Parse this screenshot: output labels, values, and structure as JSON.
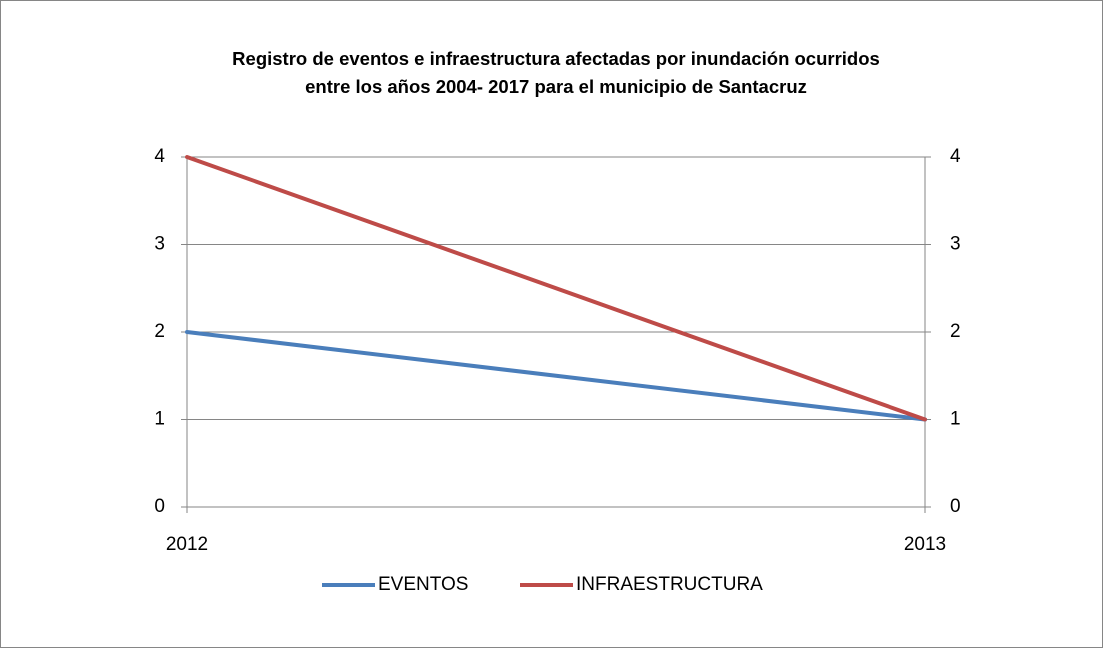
{
  "chart_data": {
    "type": "line",
    "title": [
      "Registro de eventos e infraestructura afectadas por inundación ocurridos",
      "entre los años 2004- 2017 para el municipio de Santacruz"
    ],
    "categories": [
      "2012",
      "2013"
    ],
    "series": [
      {
        "name": "EVENTOS",
        "color": "#4a7ebb",
        "values": [
          2,
          1
        ]
      },
      {
        "name": "INFRAESTRUCTURA",
        "color": "#be4b48",
        "values": [
          4,
          1
        ],
        "axis": "y2"
      }
    ],
    "ylim": [
      0,
      4
    ],
    "yticks": [
      0,
      1,
      2,
      3,
      4
    ],
    "y2lim": [
      0,
      4
    ],
    "y2ticks": [
      0,
      1,
      2,
      3,
      4
    ],
    "grid": true,
    "legend": "bottom"
  }
}
